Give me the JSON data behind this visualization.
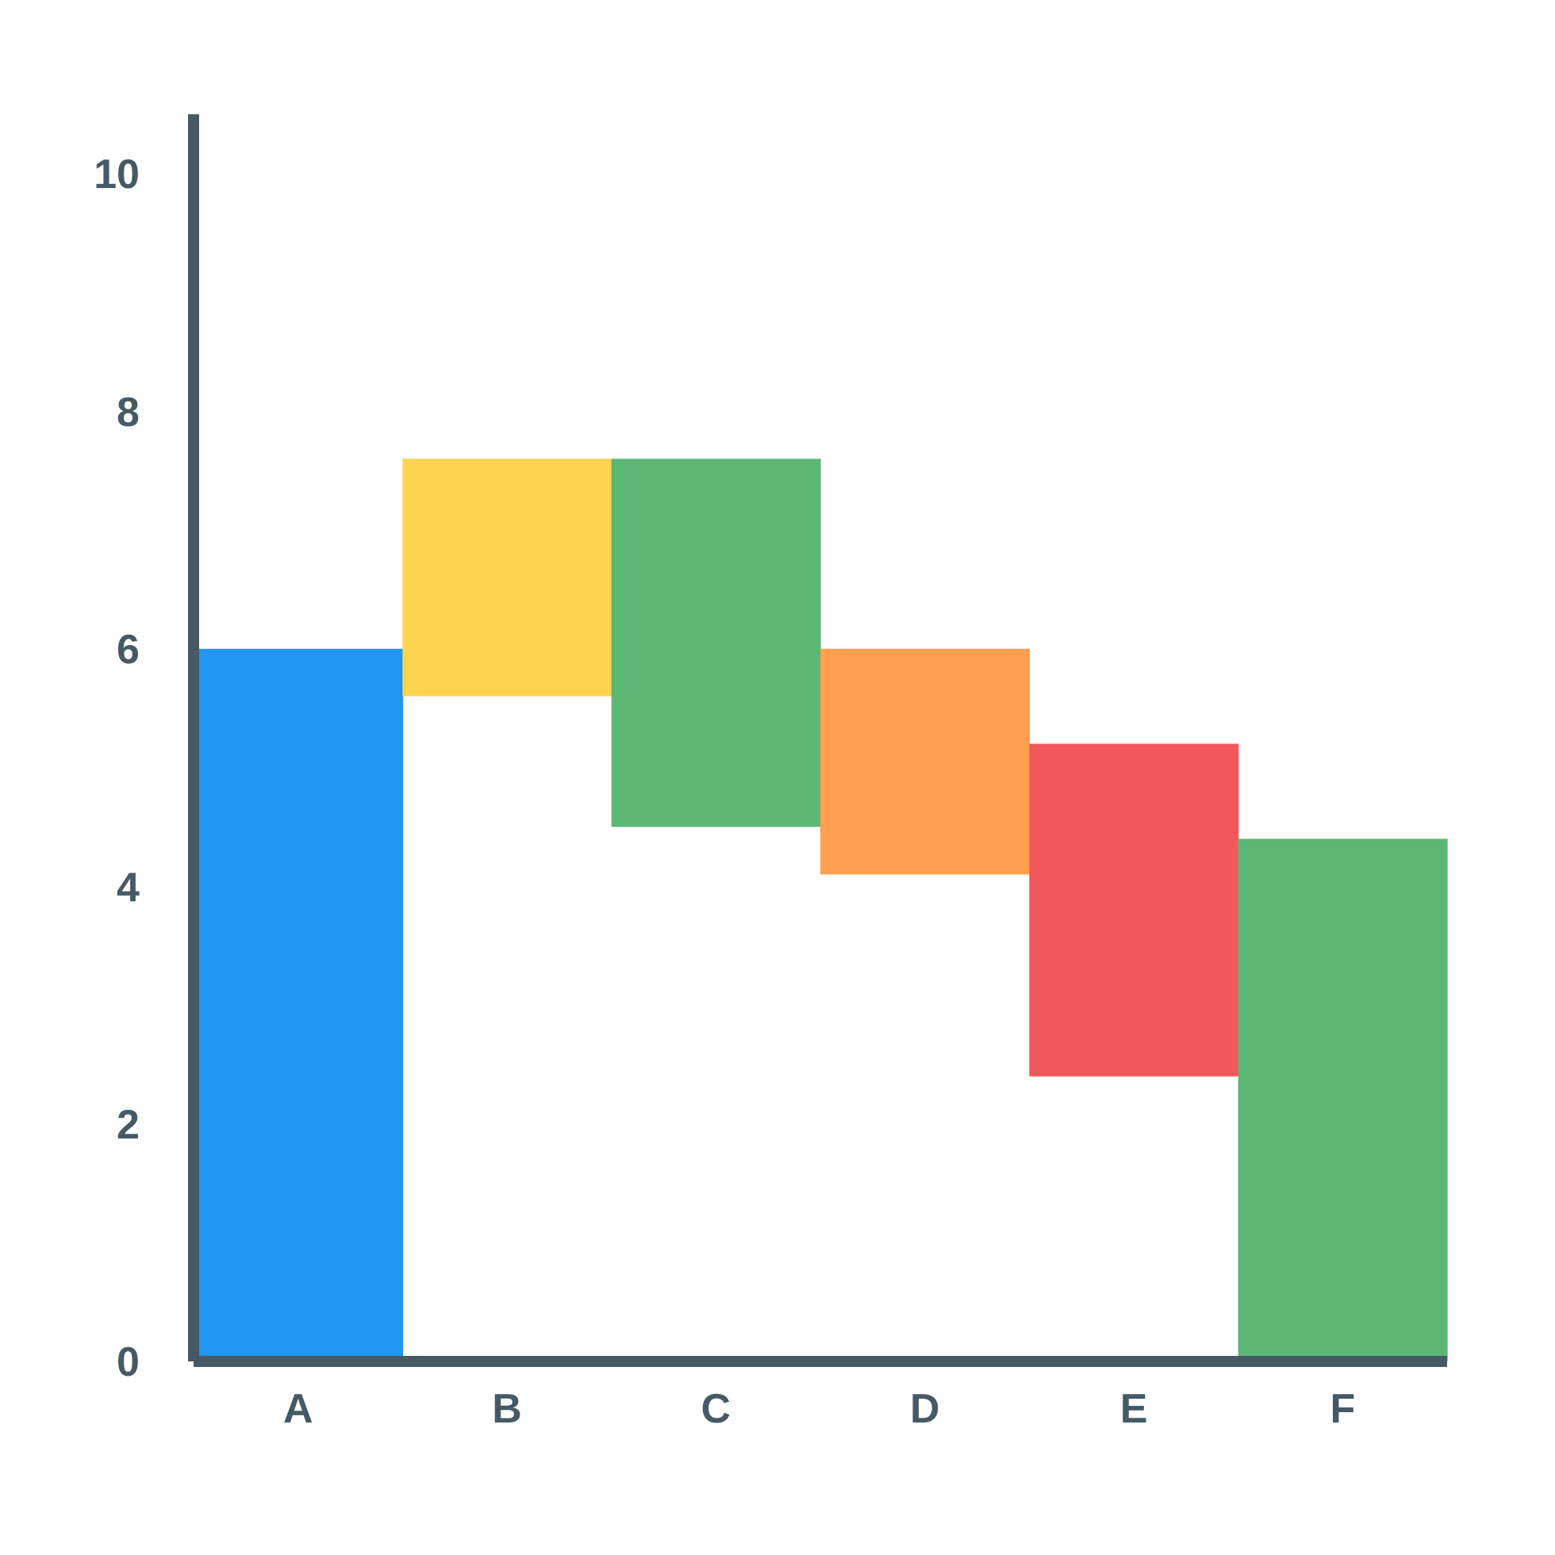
{
  "chart_data": {
    "type": "bar",
    "categories": [
      "A",
      "B",
      "C",
      "D",
      "E",
      "F"
    ],
    "values": [
      6.0,
      2.0,
      3.1,
      1.9,
      2.8,
      4.4
    ],
    "base": [
      0,
      5.6,
      4.5,
      4.1,
      2.4,
      0
    ],
    "colors": [
      "#2196f3",
      "#fed44f",
      "#5db774",
      "#fea04f",
      "#f2575a",
      "#5db774"
    ],
    "ylim": [
      0,
      10.5
    ],
    "yticks": [
      0,
      2,
      4,
      6,
      8,
      10
    ],
    "grid": false,
    "legend": false
  }
}
